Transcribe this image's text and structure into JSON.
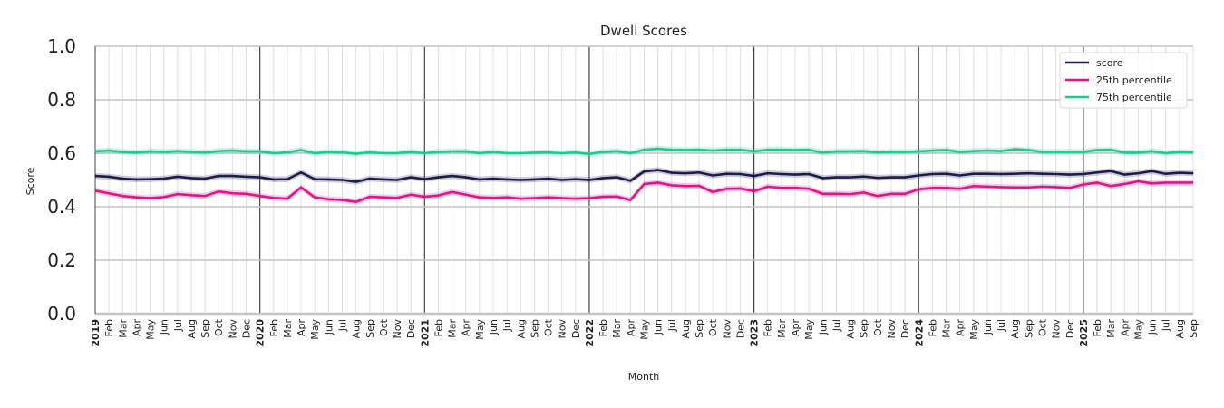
{
  "chart_data": {
    "type": "line",
    "title": "Dwell Scores",
    "xlabel": "Month",
    "ylabel": "Score",
    "ylim": [
      0,
      1
    ],
    "yticks": [
      "0.0",
      "0.2",
      "0.4",
      "0.6",
      "0.8",
      "1.0"
    ],
    "grid": true,
    "legend_position": "top-right",
    "x_start": "2019-01",
    "x_end": "2025-09",
    "month_labels": [
      "Jan",
      "Feb",
      "Mar",
      "Apr",
      "May",
      "Jun",
      "Jul",
      "Aug",
      "Sep",
      "Oct",
      "Nov",
      "Dec"
    ],
    "years": [
      "2019",
      "2020",
      "2021",
      "2022",
      "2023",
      "2024",
      "2025"
    ],
    "series": [
      {
        "name": "score",
        "color": "#1b1d4f",
        "values": [
          0.515,
          0.512,
          0.505,
          0.502,
          0.503,
          0.505,
          0.512,
          0.507,
          0.505,
          0.515,
          0.515,
          0.512,
          0.51,
          0.502,
          0.503,
          0.528,
          0.503,
          0.502,
          0.5,
          0.493,
          0.505,
          0.502,
          0.5,
          0.51,
          0.503,
          0.51,
          0.515,
          0.51,
          0.502,
          0.505,
          0.502,
          0.5,
          0.502,
          0.505,
          0.5,
          0.503,
          0.5,
          0.507,
          0.51,
          0.497,
          0.532,
          0.537,
          0.527,
          0.525,
          0.528,
          0.517,
          0.523,
          0.522,
          0.515,
          0.525,
          0.522,
          0.52,
          0.522,
          0.507,
          0.51,
          0.51,
          0.513,
          0.508,
          0.51,
          0.51,
          0.517,
          0.522,
          0.523,
          0.517,
          0.523,
          0.523,
          0.522,
          0.523,
          0.525,
          0.523,
          0.522,
          0.52,
          0.522,
          0.528,
          0.533,
          0.52,
          0.525,
          0.533,
          0.523,
          0.527,
          0.525
        ]
      },
      {
        "name": "25th percentile",
        "color": "#e0158a",
        "values": [
          0.46,
          0.45,
          0.44,
          0.435,
          0.432,
          0.436,
          0.447,
          0.443,
          0.44,
          0.457,
          0.45,
          0.448,
          0.44,
          0.433,
          0.43,
          0.472,
          0.435,
          0.428,
          0.425,
          0.418,
          0.437,
          0.435,
          0.433,
          0.445,
          0.437,
          0.442,
          0.455,
          0.445,
          0.435,
          0.433,
          0.435,
          0.43,
          0.432,
          0.435,
          0.432,
          0.43,
          0.432,
          0.437,
          0.438,
          0.425,
          0.485,
          0.49,
          0.48,
          0.477,
          0.478,
          0.455,
          0.467,
          0.468,
          0.458,
          0.475,
          0.47,
          0.47,
          0.467,
          0.448,
          0.448,
          0.447,
          0.453,
          0.44,
          0.448,
          0.448,
          0.465,
          0.47,
          0.47,
          0.467,
          0.477,
          0.475,
          0.473,
          0.472,
          0.472,
          0.475,
          0.473,
          0.47,
          0.483,
          0.49,
          0.477,
          0.485,
          0.495,
          0.487,
          0.49,
          0.49,
          0.49
        ]
      },
      {
        "name": "75th percentile",
        "color": "#1fc98f",
        "values": [
          0.607,
          0.61,
          0.605,
          0.602,
          0.607,
          0.605,
          0.608,
          0.605,
          0.602,
          0.608,
          0.61,
          0.607,
          0.607,
          0.6,
          0.603,
          0.612,
          0.6,
          0.605,
          0.603,
          0.598,
          0.603,
          0.6,
          0.6,
          0.605,
          0.6,
          0.605,
          0.607,
          0.607,
          0.6,
          0.605,
          0.6,
          0.6,
          0.602,
          0.603,
          0.6,
          0.603,
          0.597,
          0.605,
          0.608,
          0.6,
          0.613,
          0.617,
          0.613,
          0.612,
          0.613,
          0.61,
          0.613,
          0.613,
          0.607,
          0.613,
          0.613,
          0.612,
          0.613,
          0.602,
          0.607,
          0.607,
          0.608,
          0.603,
          0.605,
          0.605,
          0.607,
          0.61,
          0.612,
          0.605,
          0.608,
          0.61,
          0.608,
          0.615,
          0.612,
          0.605,
          0.605,
          0.605,
          0.605,
          0.612,
          0.613,
          0.602,
          0.602,
          0.608,
          0.6,
          0.605,
          0.603
        ]
      }
    ]
  }
}
